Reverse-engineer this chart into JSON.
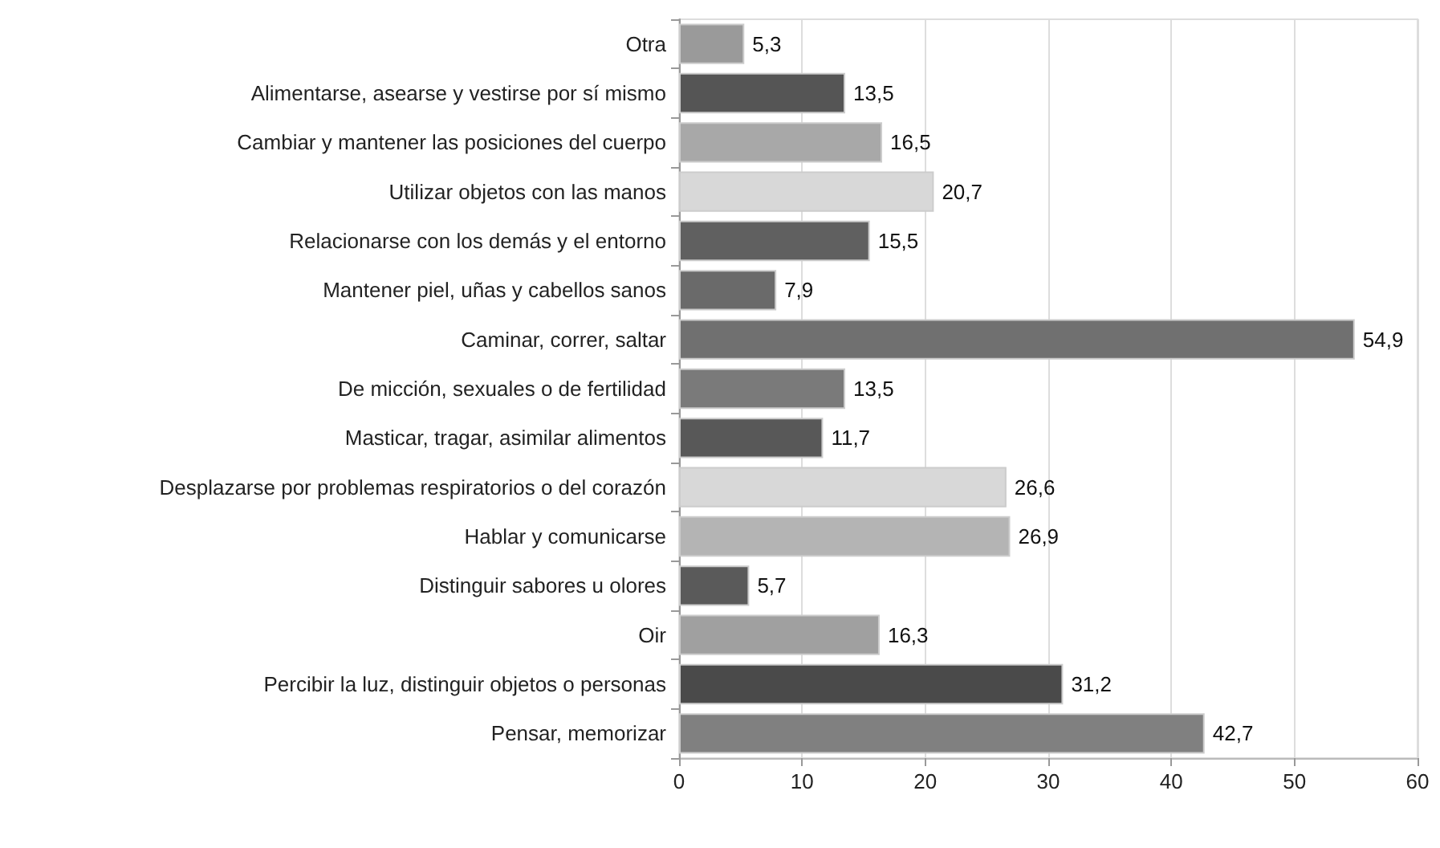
{
  "chart_data": {
    "type": "bar",
    "orientation": "horizontal",
    "categories": [
      "Otra",
      "Alimentarse, asearse y vestirse por sí mismo",
      "Cambiar y mantener las posiciones del cuerpo",
      "Utilizar objetos con las manos",
      "Relacionarse con los demás y el entorno",
      "Mantener piel, uñas y cabellos sanos",
      "Caminar, correr, saltar",
      "De micción, sexuales o de fertilidad",
      "Masticar, tragar, asimilar alimentos",
      "Desplazarse por problemas respiratorios o del corazón",
      "Hablar y comunicarse",
      "Distinguir sabores u olores",
      "Oir",
      "Percibir la luz, distinguir objetos o personas",
      "Pensar, memorizar"
    ],
    "values": [
      5.3,
      13.5,
      16.5,
      20.7,
      15.5,
      7.9,
      54.9,
      13.5,
      11.7,
      26.6,
      26.9,
      5.7,
      16.3,
      31.2,
      42.7
    ],
    "value_labels": [
      "5,3",
      "13,5",
      "16,5",
      "20,7",
      "15,5",
      "7,9",
      "54,9",
      "13,5",
      "11,7",
      "26,6",
      "26,9",
      "5,7",
      "16,3",
      "31,2",
      "42,7"
    ],
    "colors": [
      "#9a9a9a",
      "#555555",
      "#a8a8a8",
      "#d8d8d8",
      "#606060",
      "#6a6a6a",
      "#707070",
      "#7a7a7a",
      "#585858",
      "#d8d8d8",
      "#b4b4b4",
      "#5a5a5a",
      "#a0a0a0",
      "#4a4a4a",
      "#808080"
    ],
    "xlim": [
      0,
      60
    ],
    "xticks": [
      0,
      10,
      20,
      30,
      40,
      50,
      60
    ],
    "grid": "x"
  }
}
